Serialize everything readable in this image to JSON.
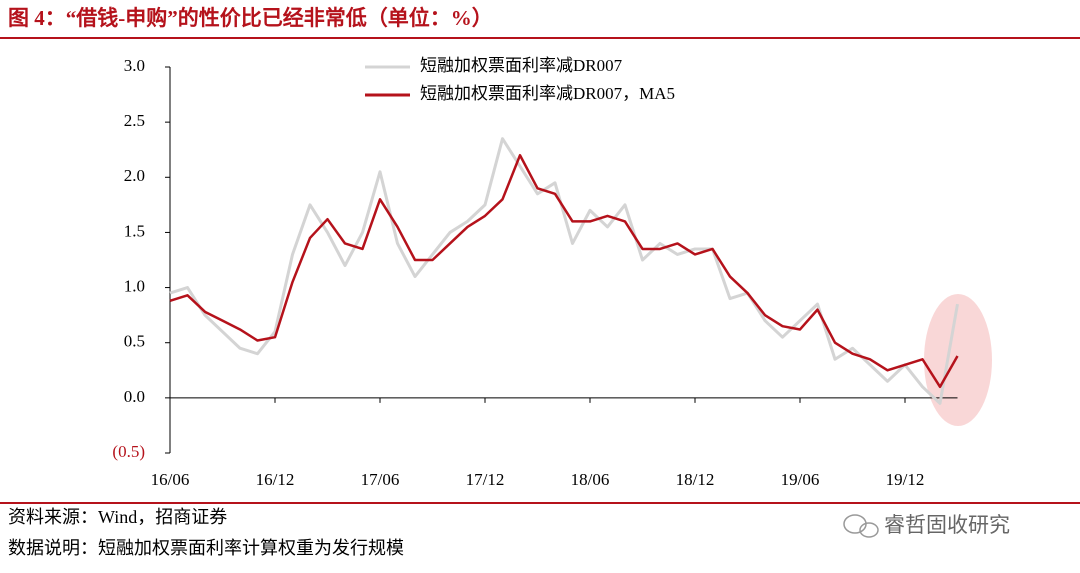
{
  "chart_data": {
    "type": "line",
    "title": "图 4：“借钱-申购”的性价比已经非常低（单位：%）",
    "x": [
      "16/06",
      "16/07",
      "16/08",
      "16/09",
      "16/10",
      "16/11",
      "16/12",
      "17/01",
      "17/02",
      "17/03",
      "17/04",
      "17/05",
      "17/06",
      "17/07",
      "17/08",
      "17/09",
      "17/10",
      "17/11",
      "17/12",
      "18/01",
      "18/02",
      "18/03",
      "18/04",
      "18/05",
      "18/06",
      "18/07",
      "18/08",
      "18/09",
      "18/10",
      "18/11",
      "18/12",
      "19/01",
      "19/02",
      "19/03",
      "19/04",
      "19/05",
      "19/06",
      "19/07",
      "19/08",
      "19/09",
      "19/10",
      "19/11",
      "19/12",
      "20/01",
      "20/02",
      "20/03"
    ],
    "xticks": [
      "16/06",
      "16/12",
      "17/06",
      "17/12",
      "18/06",
      "18/12",
      "19/06",
      "19/12"
    ],
    "series": [
      {
        "name": "短融加权票面利率减DR007",
        "color": "#d4d4d4",
        "values": [
          0.95,
          1.0,
          0.75,
          0.6,
          0.45,
          0.4,
          0.6,
          1.3,
          1.75,
          1.5,
          1.2,
          1.5,
          2.05,
          1.4,
          1.1,
          1.3,
          1.5,
          1.6,
          1.75,
          2.35,
          2.1,
          1.85,
          1.95,
          1.4,
          1.7,
          1.55,
          1.75,
          1.25,
          1.4,
          1.3,
          1.35,
          1.35,
          0.9,
          0.95,
          0.7,
          0.55,
          0.7,
          0.85,
          0.35,
          0.45,
          0.3,
          0.15,
          0.3,
          0.1,
          -0.05,
          0.85
        ]
      },
      {
        "name": "短融加权票面利率减DR007，MA5",
        "color": "#b5121b",
        "values": [
          0.88,
          0.93,
          0.78,
          0.7,
          0.62,
          0.52,
          0.55,
          1.05,
          1.45,
          1.62,
          1.4,
          1.35,
          1.8,
          1.55,
          1.25,
          1.25,
          1.4,
          1.55,
          1.65,
          1.8,
          2.2,
          1.9,
          1.85,
          1.6,
          1.6,
          1.65,
          1.6,
          1.35,
          1.35,
          1.4,
          1.3,
          1.35,
          1.1,
          0.95,
          0.75,
          0.65,
          0.62,
          0.8,
          0.5,
          0.4,
          0.35,
          0.25,
          0.3,
          0.35,
          0.1,
          0.38
        ]
      }
    ],
    "ylim": [
      -0.5,
      3.0
    ],
    "yticks": [
      {
        "value": -0.5,
        "label": "(0.5)"
      },
      {
        "value": 0,
        "label": "0.0"
      },
      {
        "value": 0.5,
        "label": "0.5"
      },
      {
        "value": 1,
        "label": "1.0"
      },
      {
        "value": 1.5,
        "label": "1.5"
      },
      {
        "value": 2,
        "label": "2.0"
      },
      {
        "value": 2.5,
        "label": "2.5"
      },
      {
        "value": 3,
        "label": "3.0"
      }
    ],
    "source": "资料来源：Wind，招商证券",
    "note": "数据说明：短融加权票面利率计算权重为发行规模",
    "watermark": "睿哲固收研究"
  }
}
